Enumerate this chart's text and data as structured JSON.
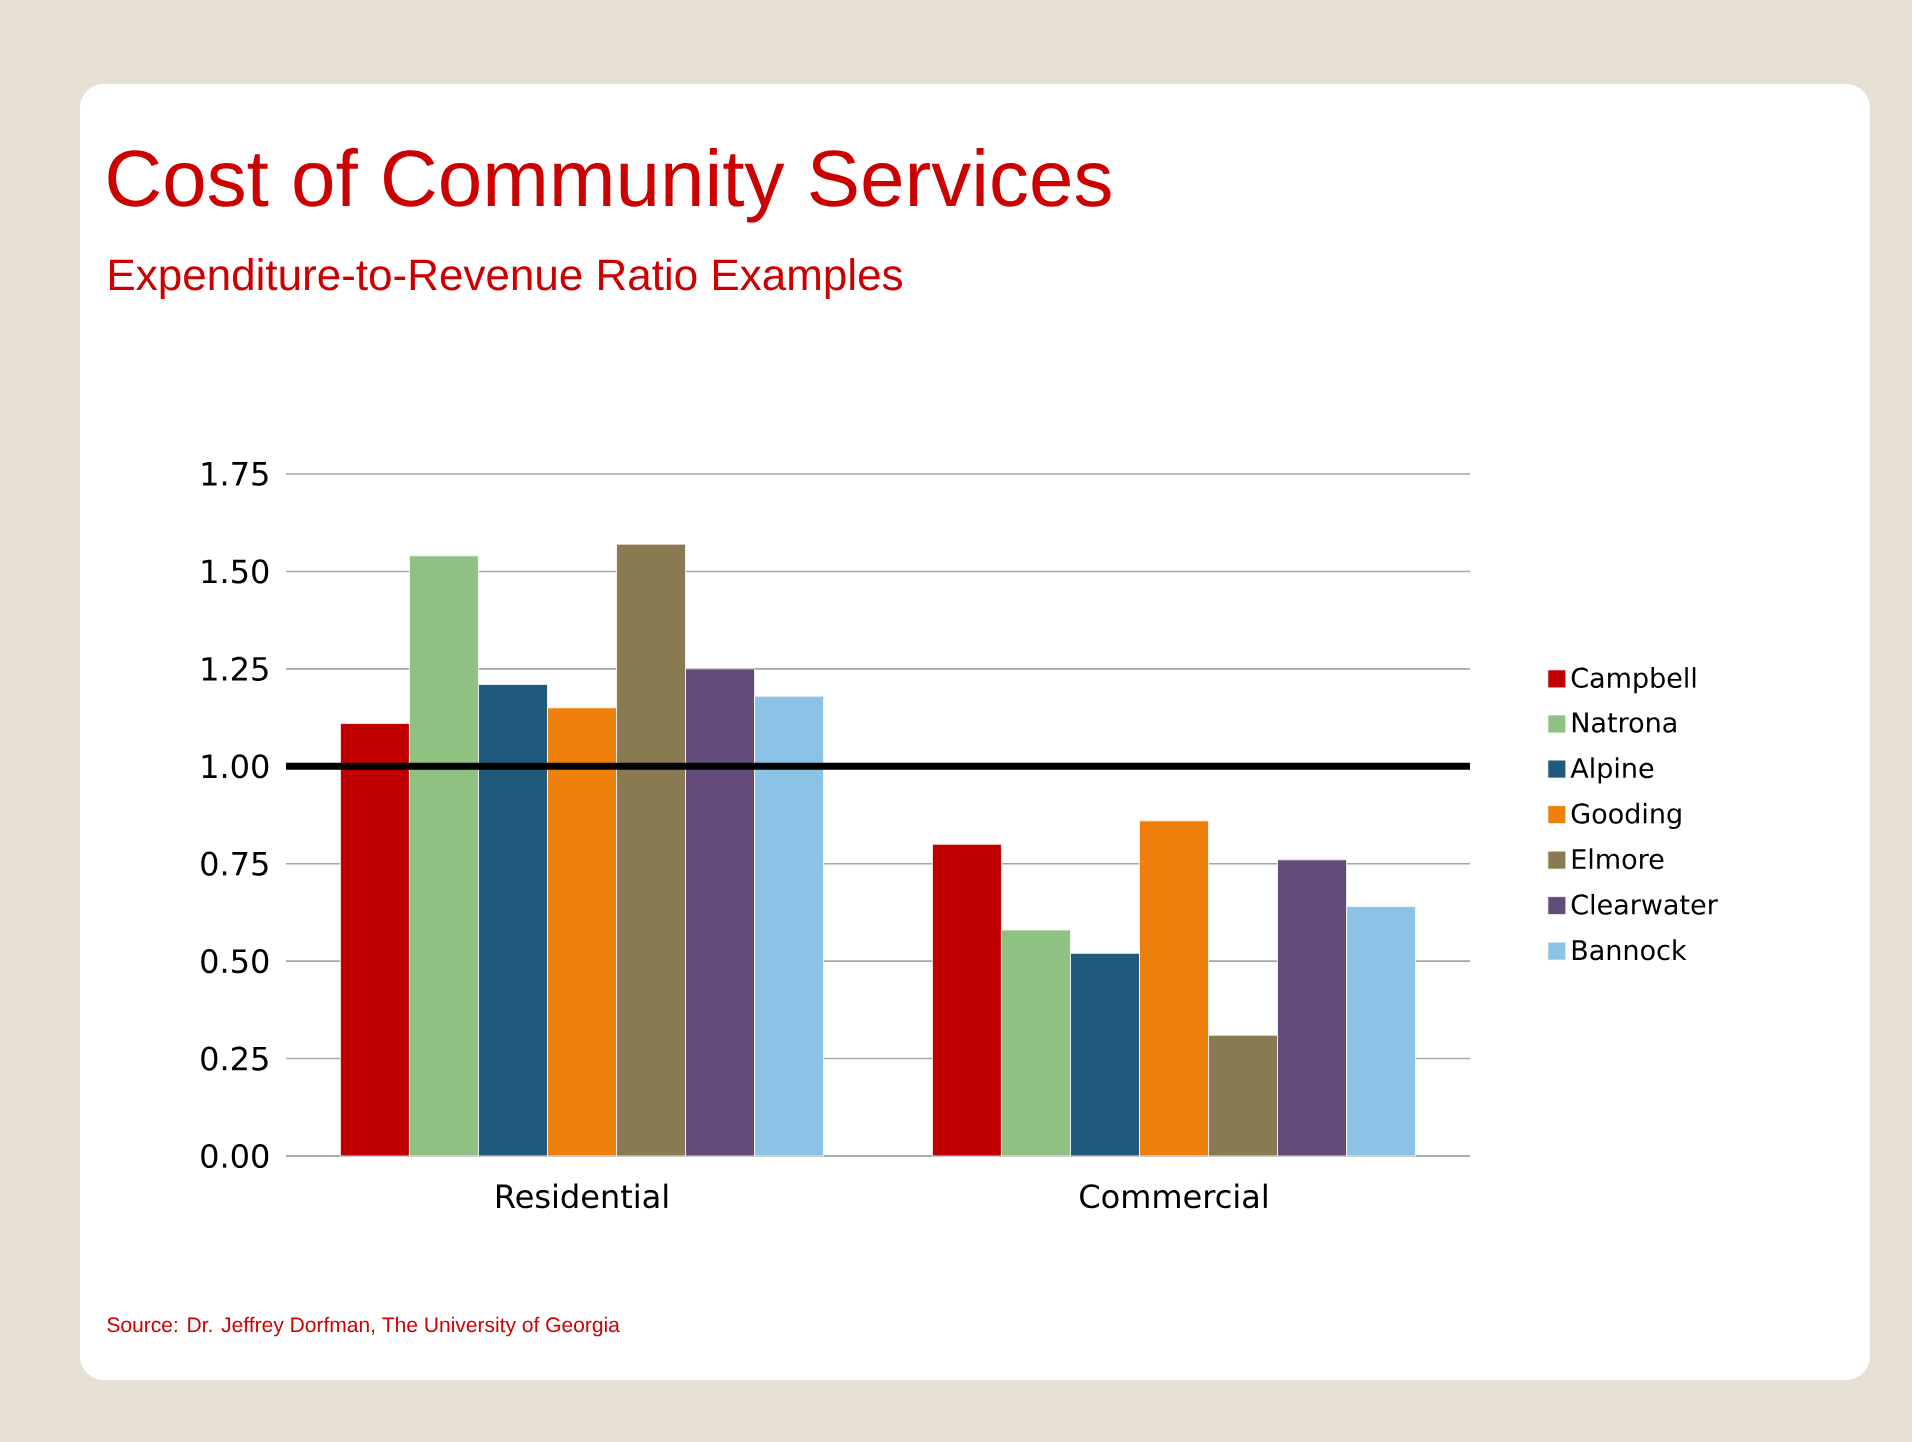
{
  "chart_data": {
    "type": "bar",
    "title": "Cost of Community Services",
    "subtitle": "Expenditure-to-Revenue Ratio Examples",
    "categories": [
      "Residential",
      "Commercial"
    ],
    "series": [
      {
        "name": "Campbell",
        "color": "#c00000",
        "values": [
          1.11,
          0.8
        ]
      },
      {
        "name": "Natrona",
        "color": "#8fc183",
        "values": [
          1.54,
          0.58
        ]
      },
      {
        "name": "Alpine",
        "color": "#1f5a7c",
        "values": [
          1.21,
          0.52
        ]
      },
      {
        "name": "Gooding",
        "color": "#ef800b",
        "values": [
          1.15,
          0.86
        ]
      },
      {
        "name": "Elmore",
        "color": "#8a7a52",
        "values": [
          1.57,
          0.31
        ]
      },
      {
        "name": "Clearwater",
        "color": "#624a7b",
        "values": [
          1.25,
          0.76
        ]
      },
      {
        "name": "Bannock",
        "color": "#8cc2e6",
        "values": [
          1.18,
          0.64
        ]
      }
    ],
    "ylim": [
      0,
      1.75
    ],
    "yticks": [
      {
        "value": 0,
        "label": "0.00"
      },
      {
        "value": 0.25,
        "label": "0.25"
      },
      {
        "value": 0.5,
        "label": "0.50"
      },
      {
        "value": 0.75,
        "label": "0.75"
      },
      {
        "value": 1,
        "label": "1.00"
      },
      {
        "value": 1.25,
        "label": "1.25"
      },
      {
        "value": 1.5,
        "label": "1.50"
      },
      {
        "value": 1.75,
        "label": "1.75"
      }
    ],
    "ref_lines": [
      {
        "axis": "y",
        "value": 1,
        "color": "#000000"
      }
    ],
    "grid": "y",
    "legend": "right",
    "annotations": [
      "Source: Dr. Jeffrey Dorfman, The University of Georgia"
    ]
  }
}
